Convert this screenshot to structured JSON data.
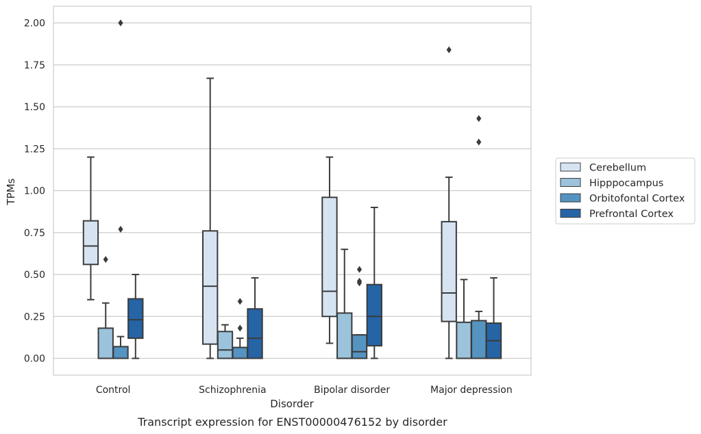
{
  "chart_data": {
    "type": "boxplot",
    "caption": "Transcript expression for ENST00000476152 by disorder",
    "xlabel": "Disorder",
    "ylabel": "TPMs",
    "ylim": [
      -0.1,
      2.1
    ],
    "yticks": [
      0.0,
      0.25,
      0.5,
      0.75,
      1.0,
      1.25,
      1.5,
      1.75,
      2.0
    ],
    "ytick_labels": [
      "0.00",
      "0.25",
      "0.50",
      "0.75",
      "1.00",
      "1.25",
      "1.50",
      "1.75",
      "2.00"
    ],
    "grid": "horizontal",
    "legend_position": "right",
    "categories": [
      "Control",
      "Schizophrenia",
      "Bipolar disorder",
      "Major depression"
    ],
    "series": [
      {
        "name": "Cerebellum",
        "color": "#d6e4f2",
        "boxes": [
          {
            "whislo": 0.35,
            "q1": 0.56,
            "med": 0.67,
            "q3": 0.82,
            "whishi": 1.2,
            "fliers": []
          },
          {
            "whislo": 0.0,
            "q1": 0.085,
            "med": 0.43,
            "q3": 0.76,
            "whishi": 1.67,
            "fliers": []
          },
          {
            "whislo": 0.09,
            "q1": 0.25,
            "med": 0.4,
            "q3": 0.96,
            "whishi": 1.2,
            "fliers": []
          },
          {
            "whislo": 0.0,
            "q1": 0.22,
            "med": 0.39,
            "q3": 0.815,
            "whishi": 1.08,
            "fliers": [
              1.84
            ]
          }
        ]
      },
      {
        "name": "Hipppocampus",
        "color": "#9bc3dc",
        "boxes": [
          {
            "whislo": 0.0,
            "q1": 0.0,
            "med": 0.0,
            "q3": 0.18,
            "whishi": 0.33,
            "fliers": [
              0.59
            ]
          },
          {
            "whislo": 0.0,
            "q1": 0.0,
            "med": 0.05,
            "q3": 0.16,
            "whishi": 0.2,
            "fliers": []
          },
          {
            "whislo": 0.0,
            "q1": 0.0,
            "med": 0.0,
            "q3": 0.27,
            "whishi": 0.65,
            "fliers": []
          },
          {
            "whislo": 0.0,
            "q1": 0.0,
            "med": 0.0,
            "q3": 0.215,
            "whishi": 0.47,
            "fliers": []
          }
        ]
      },
      {
        "name": "Orbitofontal Cortex",
        "color": "#5593c1",
        "boxes": [
          {
            "whislo": 0.0,
            "q1": 0.0,
            "med": 0.0,
            "q3": 0.07,
            "whishi": 0.13,
            "fliers": [
              0.77,
              2.0
            ]
          },
          {
            "whislo": 0.0,
            "q1": 0.0,
            "med": 0.0,
            "q3": 0.065,
            "whishi": 0.12,
            "fliers": [
              0.18,
              0.34
            ]
          },
          {
            "whislo": 0.0,
            "q1": 0.0,
            "med": 0.04,
            "q3": 0.14,
            "whishi": 0.14,
            "fliers": [
              0.45,
              0.46,
              0.53
            ]
          },
          {
            "whislo": 0.0,
            "q1": 0.0,
            "med": 0.0,
            "q3": 0.225,
            "whishi": 0.28,
            "fliers": [
              1.29,
              1.43
            ]
          }
        ]
      },
      {
        "name": "Prefrontal Cortex",
        "color": "#2564a5",
        "boxes": [
          {
            "whislo": 0.0,
            "q1": 0.12,
            "med": 0.23,
            "q3": 0.355,
            "whishi": 0.5,
            "fliers": []
          },
          {
            "whislo": 0.0,
            "q1": 0.0,
            "med": 0.12,
            "q3": 0.295,
            "whishi": 0.48,
            "fliers": []
          },
          {
            "whislo": 0.0,
            "q1": 0.075,
            "med": 0.25,
            "q3": 0.44,
            "whishi": 0.9,
            "fliers": []
          },
          {
            "whislo": 0.0,
            "q1": 0.0,
            "med": 0.105,
            "q3": 0.21,
            "whishi": 0.48,
            "fliers": []
          }
        ]
      }
    ]
  }
}
